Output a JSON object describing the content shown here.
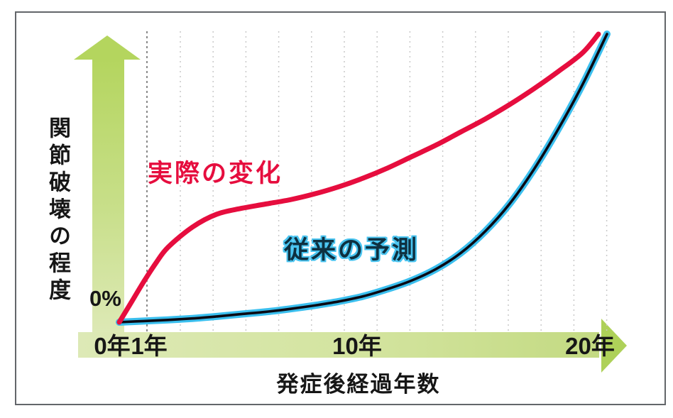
{
  "labels": {
    "y_axis": "関節破壊の程度",
    "x_axis": "発症後経過年数",
    "origin_pct": "0%",
    "x_ticks": [
      "0年",
      "1年",
      "10年",
      "20年"
    ]
  },
  "colors": {
    "actual_line": "#e60d3e",
    "actual_label": "#e60d3e",
    "predicted_line_core": "#0a0a14",
    "predicted_line_glow": "#3bbfee",
    "predicted_label_core": "#0e3040",
    "predicted_label_glow": "#49c4f0",
    "arrow_green_strong": "#b4d55e",
    "arrow_green_pale": "#dde9b6",
    "grid_light": "#c9c9c9",
    "grid_dark": "#6e6e6e",
    "frame": "#63666a",
    "text": "#161616",
    "background": "#ffffff"
  },
  "chart_data": {
    "type": "line",
    "title": "",
    "xlabel": "発症後経過年数",
    "ylabel": "関節破壊の程度",
    "xlim": [
      0,
      20
    ],
    "ylim": [
      0,
      100
    ],
    "x_unit": "年 (years after disease onset)",
    "y_unit": "% (degree of joint destruction, origin marked 0%)",
    "x_tick_labels": [
      "0年",
      "1年",
      "10年",
      "20年"
    ],
    "x_tick_values": [
      0,
      1,
      10,
      20
    ],
    "grid": "vertical dotted lines, darker dashed line at 1年",
    "legend_position": "inline annotations on curves",
    "series": [
      {
        "name": "実際の変化",
        "color": "#e60d3e",
        "x": [
          0,
          0.5,
          1,
          1.5,
          2,
          3,
          4,
          5,
          6,
          7,
          8,
          9,
          10,
          11,
          12,
          13,
          14,
          15,
          16,
          17,
          18,
          19,
          19.65
        ],
        "y": [
          0,
          7,
          14,
          20.5,
          26,
          33,
          37.5,
          39.5,
          41,
          42.5,
          44.5,
          47,
          50,
          53.5,
          57.5,
          61.5,
          66,
          70.5,
          75.5,
          81,
          87,
          93.5,
          100
        ]
      },
      {
        "name": "従来の予測",
        "color": "#3bbfee",
        "x": [
          0,
          1,
          2,
          3,
          4,
          5,
          6,
          7,
          8,
          9,
          10,
          11,
          12,
          13,
          14,
          15,
          16,
          17,
          18,
          19,
          20
        ],
        "y": [
          0,
          0.4,
          0.8,
          1.3,
          2,
          2.8,
          3.6,
          4.6,
          5.8,
          7.2,
          9,
          11.5,
          14.5,
          18.5,
          24,
          31.5,
          41,
          53,
          67,
          82.5,
          100
        ]
      }
    ]
  }
}
